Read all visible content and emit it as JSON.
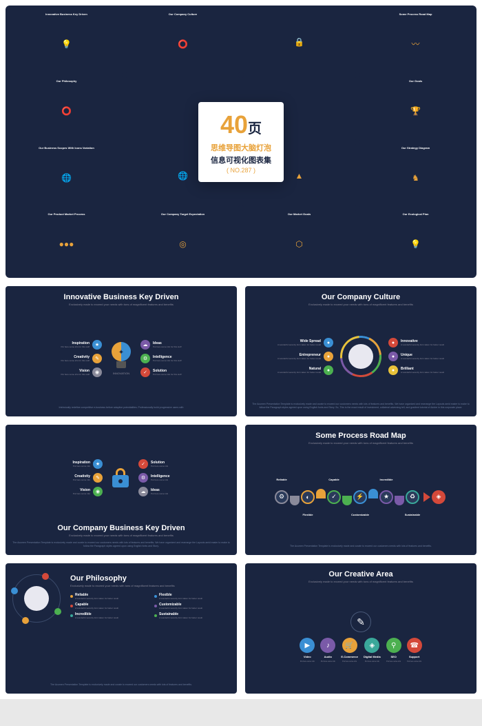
{
  "hero": {
    "number": "40",
    "page_char": "页",
    "line1": "思维导图大脑灯泡",
    "line2": "信息可视化图表集",
    "line3": "( NO.287 )",
    "number_color": "#e8a23a",
    "accent_color": "#1a2540"
  },
  "mini_slides": [
    {
      "title": "Innovative Business Key Driven",
      "type": "bulb"
    },
    {
      "title": "Our Company Culture",
      "type": "orbit"
    },
    {
      "title": "",
      "type": "lock"
    },
    {
      "title": "Some Process Road Map",
      "type": "roadmap"
    },
    {
      "title": "Our Philosophy",
      "type": "orbit"
    },
    {
      "title": "",
      "type": "blank"
    },
    {
      "title": "",
      "type": "blank"
    },
    {
      "title": "Our Goals",
      "type": "trophy"
    },
    {
      "title": "Our Business Scopes With Icons Variation",
      "type": "globe"
    },
    {
      "title": "",
      "type": "globe"
    },
    {
      "title": "",
      "type": "mountain"
    },
    {
      "title": "Our Strategy Diagram",
      "type": "chess"
    },
    {
      "title": "Our Product Market Process",
      "type": "row"
    },
    {
      "title": "Our Company Target Expectation",
      "type": "target"
    },
    {
      "title": "Our Market Goals",
      "type": "flow"
    },
    {
      "title": "Our Ecological Plan",
      "type": "bulb2"
    }
  ],
  "colors": {
    "bg": "#1a2540",
    "orange": "#e8a23a",
    "blue": "#3a8fd4",
    "green": "#4cb050",
    "red": "#d4493a",
    "purple": "#7a5aa8",
    "teal": "#3aa89a",
    "yellow": "#e8c23a",
    "gray": "#8a8a9a"
  },
  "slides": {
    "s1": {
      "title": "Innovative Business Key Driven",
      "subtitle": "Exclusively made to exceed your needs with tons of magnificent features and benefits",
      "innovation_label": "INNOVATION",
      "left": [
        {
          "label": "Inspiration",
          "sub": "Put here some info for this stuff",
          "color": "#3a8fd4",
          "icon": "★"
        },
        {
          "label": "Creativity",
          "sub": "Put here some info for this stuff",
          "color": "#e8a23a",
          "icon": "✎"
        },
        {
          "label": "Vision",
          "sub": "Put here some info for this stuff",
          "color": "#8a8a9a",
          "icon": "◉"
        }
      ],
      "right": [
        {
          "label": "Ideas",
          "sub": "Put here some info for this stuff",
          "color": "#7a5aa8",
          "icon": "☁"
        },
        {
          "label": "Intelligence",
          "sub": "Put here some info for this stuff",
          "color": "#4cb050",
          "icon": "⚙"
        },
        {
          "label": "Solution",
          "sub": "Put here some info for this stuff",
          "color": "#d4493a",
          "icon": "✓"
        }
      ],
      "footer": "Intrinsically redefine competitive e-business before adaptive potentialities. Professionally build progressive users with"
    },
    "s2": {
      "title": "Our Company Culture",
      "subtitle": "Exclusively made to exceed your needs with tons of magnificent features and benefits",
      "left": [
        {
          "label": "Wide Spread",
          "sub": "A wonderful serenity form taken for better result",
          "color": "#3a8fd4"
        },
        {
          "label": "Entrepreneur",
          "sub": "A wonderful serenity form taken for better result",
          "color": "#e8a23a"
        },
        {
          "label": "Natural",
          "sub": "A wonderful serenity form taken for better result",
          "color": "#4cb050"
        }
      ],
      "right": [
        {
          "label": "Innovative",
          "sub": "A wonderful serenity form taken for better result",
          "color": "#d4493a"
        },
        {
          "label": "Unique",
          "sub": "A wonderful serenity form taken for better result",
          "color": "#7a5aa8"
        },
        {
          "label": "Brilliant",
          "sub": "A wonderful serenity form taken for better result",
          "color": "#e8c23a"
        }
      ],
      "footer": "The Acumen Presentation Template is exclusively made and curate to exceed our customers needs with lots of features and benefits. We have organized and rearrange the Layouts amid easier to make to follow the Paragraph styles agreed upon using English fonts and Story. So, This is the exact result of investment, collateral adversing tell, and gradient tutorial of Adobe in this corporate place."
    },
    "s3": {
      "title": "Our Company Business Key Driven",
      "subtitle": "Exclusively made to exceed your needs with tons of magnificent features and benefits",
      "left": [
        {
          "label": "Inspiration",
          "sub": "Put here some info",
          "color": "#3a8fd4",
          "icon": "★"
        },
        {
          "label": "Creativity",
          "sub": "Put here some info",
          "color": "#e8a23a",
          "icon": "✎"
        },
        {
          "label": "Vision",
          "sub": "Put here some info",
          "color": "#4cb050",
          "icon": "◉"
        }
      ],
      "right": [
        {
          "label": "Solution",
          "sub": "Put here some info",
          "color": "#d4493a",
          "icon": "✓"
        },
        {
          "label": "Intelligence",
          "sub": "Put here some info",
          "color": "#7a5aa8",
          "icon": "⚙"
        },
        {
          "label": "Ideas",
          "sub": "Put here some info",
          "color": "#8a8a9a",
          "icon": "☁"
        }
      ],
      "footer": "The Acumen Presentation Template is exclusively made and curate to exceed our customers needs with lots of features and benefits. We have organized and rearrange the Layouts amid easier to make to follow the Paragraph styles agreed upon using English fonts and Story."
    },
    "s4": {
      "title": "Some Process Road Map",
      "subtitle": "Exclusively made to exceed your needs with tons of magnificent features and benefits",
      "nodes": [
        {
          "label": "Reliable",
          "pos": "top",
          "color": "#8a8a9a",
          "icon": "⚙"
        },
        {
          "label": "Flexible",
          "pos": "bot",
          "color": "#e8a23a",
          "icon": "◐"
        },
        {
          "label": "Capable",
          "pos": "top",
          "color": "#4cb050",
          "icon": "✓"
        },
        {
          "label": "Customizable",
          "pos": "bot",
          "color": "#3a8fd4",
          "icon": "⚡"
        },
        {
          "label": "Incredible",
          "pos": "top",
          "color": "#7a5aa8",
          "icon": "★"
        },
        {
          "label": "Sustainable",
          "pos": "bot",
          "color": "#3aa89a",
          "icon": "♻"
        }
      ],
      "end_color": "#d4493a",
      "end_icon": "◈",
      "footer": "The Acumen Presentation Template is exclusively made and curate to exceed our customers needs with lots of features and benefits."
    },
    "s5": {
      "title": "Our Philosophy",
      "subtitle": "Exclusively made to exceed your needs with tons of magnificent features and benefits",
      "items": [
        {
          "label": "Reliable",
          "sub": "A wonderful serenity form taken for better result",
          "color": "#e8a23a"
        },
        {
          "label": "Flexible",
          "sub": "A wonderful serenity form taken for better result",
          "color": "#3a8fd4"
        },
        {
          "label": "Capable",
          "sub": "A wonderful serenity form taken for better result",
          "color": "#d4493a"
        },
        {
          "label": "Customizable",
          "sub": "A wonderful serenity form taken for better result",
          "color": "#7a5aa8"
        },
        {
          "label": "Incredible",
          "sub": "A wonderful serenity form taken for better result",
          "color": "#3aa89a"
        },
        {
          "label": "Sustainable",
          "sub": "A wonderful serenity form taken for better result",
          "color": "#4cb050"
        }
      ],
      "orbit_dots": [
        {
          "color": "#4cb050",
          "angle": 30
        },
        {
          "color": "#e8a23a",
          "angle": 120
        },
        {
          "color": "#3a8fd4",
          "angle": 200
        },
        {
          "color": "#d4493a",
          "angle": 290
        }
      ],
      "footer": "The Acumen Presentation Template is exclusively made and curate to exceed our customers needs with lots of features and benefits."
    },
    "s6": {
      "title": "Our Creative Area",
      "subtitle": "Exclusively made to exceed your needs with tons of magnificent features and benefits",
      "pen_icon": "✎",
      "icons": [
        {
          "label": "Video",
          "sub": "Put here some info",
          "color": "#3a8fd4",
          "icon": "▶"
        },
        {
          "label": "Audio",
          "sub": "Put here some info",
          "color": "#7a5aa8",
          "icon": "♪"
        },
        {
          "label": "E-Commerce",
          "sub": "Put here some info",
          "color": "#e8a23a",
          "icon": "🛒"
        },
        {
          "label": "Digital Media",
          "sub": "Put here some info",
          "color": "#3aa89a",
          "icon": "◈"
        },
        {
          "label": "SEO",
          "sub": "Put here some info",
          "color": "#4cb050",
          "icon": "⚲"
        },
        {
          "label": "Support",
          "sub": "Put here some info",
          "color": "#d4493a",
          "icon": "☎"
        }
      ]
    }
  }
}
